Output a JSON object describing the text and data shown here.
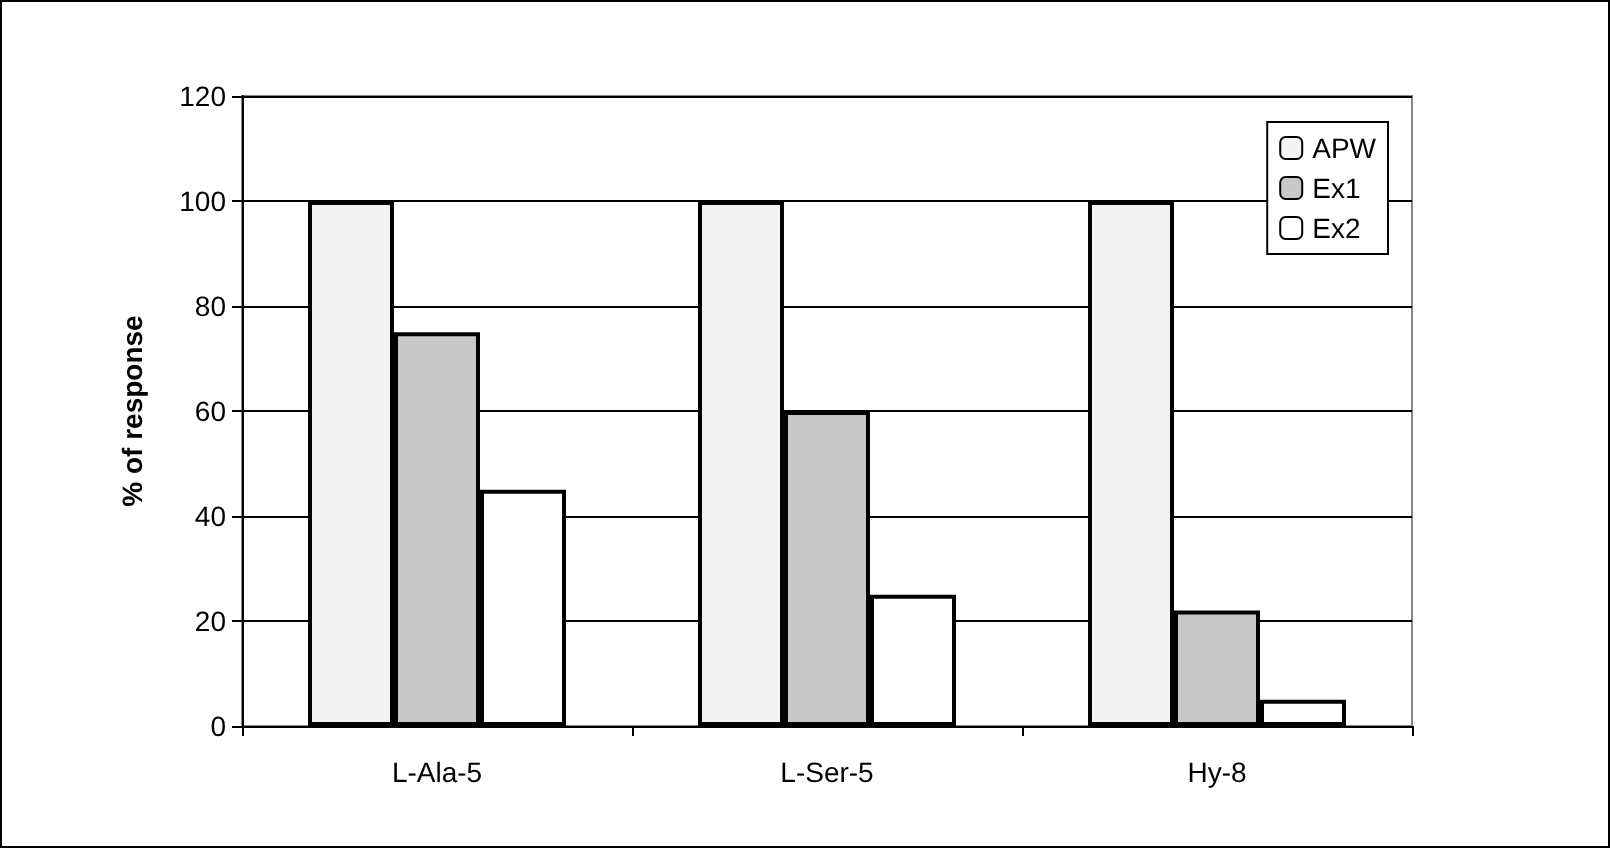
{
  "chart_data": {
    "type": "bar",
    "ylabel": "% of response",
    "categories": [
      "L-Ala-5",
      "L-Ser-5",
      "Hy-8"
    ],
    "series": [
      {
        "name": "APW",
        "color": "#f3f3f3",
        "values": [
          100,
          100,
          100
        ]
      },
      {
        "name": "Ex1",
        "color": "#c8c8c8",
        "values": [
          75,
          60,
          22
        ]
      },
      {
        "name": "Ex2",
        "color": "#ffffff",
        "values": [
          45,
          25,
          5
        ]
      }
    ],
    "ylim": [
      0,
      120
    ],
    "yticks": [
      0,
      20,
      40,
      60,
      80,
      100,
      120
    ],
    "grid": "y",
    "legend": "top right"
  }
}
